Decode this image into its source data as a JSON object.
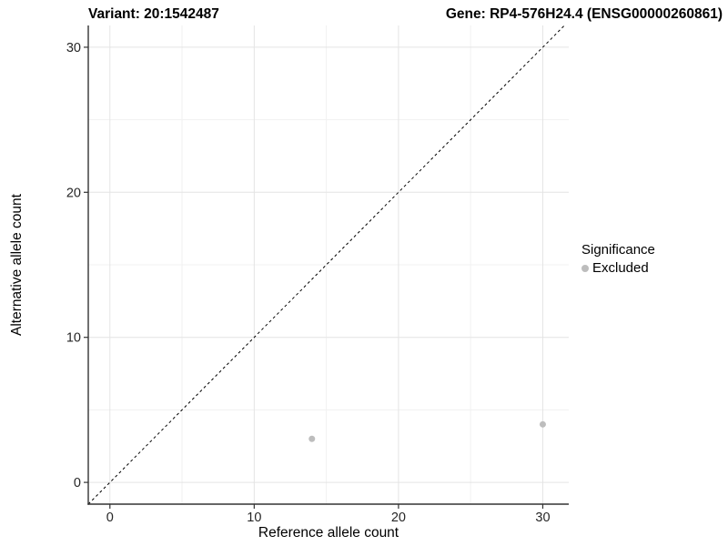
{
  "chart_data": {
    "type": "scatter",
    "title_left": "Variant: 20:1542487",
    "title_right": "Gene: RP4-576H24.4 (ENSG00000260861)",
    "xlabel": "Reference allele count",
    "ylabel": "Alternative allele count",
    "xticks": [
      0,
      10,
      20,
      30
    ],
    "yticks": [
      0,
      10,
      20,
      30
    ],
    "minor_xticks": [
      5,
      15,
      25
    ],
    "minor_yticks": [
      5,
      15,
      25
    ],
    "xlim": [
      -1.5,
      31.8
    ],
    "ylim": [
      -1.5,
      31.5
    ],
    "grid": true,
    "identity_line": {
      "slope": 1,
      "intercept": 0,
      "style": "dashed",
      "color": "#000000"
    },
    "series": [
      {
        "name": "Excluded",
        "color": "#bdbdbd",
        "points": [
          {
            "x": 14,
            "y": 3
          },
          {
            "x": 30,
            "y": 4
          }
        ]
      }
    ],
    "legend": {
      "title": "Significance",
      "position": "right",
      "entries": [
        {
          "label": "Excluded",
          "color": "#bdbdbd"
        }
      ]
    },
    "colors": {
      "background": "#ffffff",
      "grid_major": "#e4e4e4",
      "grid_minor": "#f1f1f1",
      "axis_line": "#333333",
      "tick_mark": "#333333",
      "tick_text": "#262626",
      "point": "#bdbdbd"
    }
  }
}
